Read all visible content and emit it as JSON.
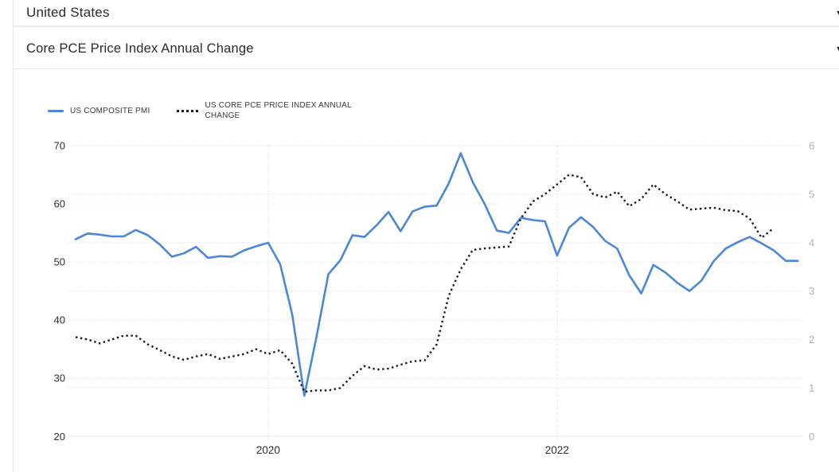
{
  "header": {
    "country_label": "United States",
    "metric_label": "Core PCE Price Index Annual Change"
  },
  "icons": {
    "chevron_down": "▾"
  },
  "chart_data": {
    "type": "line",
    "title": "",
    "grid": "dotted",
    "legend_position": "top-left",
    "x_ticks": [
      {
        "label": "2020",
        "month_index": 16
      },
      {
        "label": "2022",
        "month_index": 40
      }
    ],
    "left_axis": {
      "ticks": [
        70,
        60,
        50,
        40,
        30,
        20
      ],
      "range": [
        20,
        70
      ]
    },
    "right_axis": {
      "ticks": [
        6,
        5,
        4,
        3,
        2,
        1,
        0
      ],
      "range": [
        0,
        6
      ]
    },
    "series": [
      {
        "name": "US COMPOSITE PMI",
        "axis": "left",
        "style": "solid",
        "color": "#4b87d9",
        "values": [
          53.9,
          54.9,
          54.7,
          54.4,
          54.4,
          55.5,
          54.6,
          53.0,
          50.9,
          51.5,
          52.6,
          50.7,
          51.0,
          50.9,
          52.0,
          52.7,
          53.3,
          49.6,
          40.9,
          27.0,
          37.0,
          47.9,
          50.3,
          54.6,
          54.3,
          56.3,
          58.6,
          55.3,
          58.7,
          59.5,
          59.7,
          63.5,
          68.7,
          63.7,
          59.9,
          55.4,
          55.0,
          57.6,
          57.2,
          57.0,
          51.1,
          55.9,
          57.7,
          56.0,
          53.6,
          52.3,
          47.7,
          44.6,
          49.5,
          48.2,
          46.4,
          45.0,
          46.8,
          50.1,
          52.3,
          53.4,
          54.3,
          53.2,
          52.0,
          50.2,
          50.2
        ]
      },
      {
        "name": "US CORE PCE PRICE INDEX ANNUAL CHANGE",
        "axis": "right",
        "style": "dotted",
        "color": "#1a1a1a",
        "values": [
          2.05,
          2.0,
          1.92,
          2.0,
          2.08,
          2.08,
          1.9,
          1.78,
          1.65,
          1.58,
          1.65,
          1.7,
          1.6,
          1.65,
          1.7,
          1.8,
          1.7,
          1.78,
          1.5,
          0.92,
          0.95,
          0.95,
          1.0,
          1.25,
          1.45,
          1.38,
          1.4,
          1.48,
          1.55,
          1.57,
          1.9,
          2.9,
          3.45,
          3.85,
          3.88,
          3.9,
          3.92,
          4.5,
          4.85,
          5.0,
          5.2,
          5.4,
          5.35,
          5.0,
          4.93,
          5.05,
          4.75,
          4.9,
          5.2,
          5.0,
          4.85,
          4.68,
          4.7,
          4.72,
          4.67,
          4.65,
          4.5,
          4.1,
          4.3
        ]
      }
    ]
  }
}
